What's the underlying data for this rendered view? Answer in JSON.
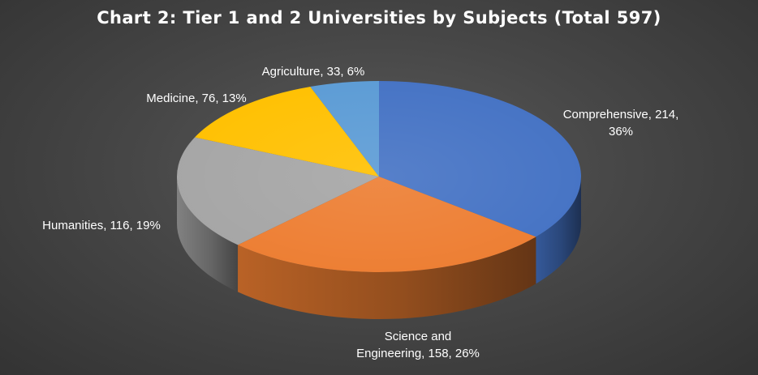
{
  "chart_data": {
    "type": "pie",
    "title": "Chart 2: Tier 1 and 2 Universities by Subjects (Total 597)",
    "slices": [
      {
        "label_lines": [
          "Comprehensive, 214,",
          "36%"
        ],
        "category": "Comprehensive",
        "value": 214,
        "percent": 36,
        "color": "#4472C4"
      },
      {
        "label_lines": [
          "Science and",
          "Engineering, 158, 26%"
        ],
        "category": "Science and Engineering",
        "value": 158,
        "percent": 26,
        "color": "#ED7D31"
      },
      {
        "label_lines": [
          "Humanities, 116, 19%"
        ],
        "category": "Humanities",
        "value": 116,
        "percent": 19,
        "color": "#A5A5A5"
      },
      {
        "label_lines": [
          "Medicine, 76, 13%"
        ],
        "category": "Medicine",
        "value": 76,
        "percent": 13,
        "color": "#FFC000"
      },
      {
        "label_lines": [
          "Agriculture, 33, 6%"
        ],
        "category": "Agriculture",
        "value": 33,
        "percent": 6,
        "color": "#5B9BD5"
      }
    ]
  }
}
